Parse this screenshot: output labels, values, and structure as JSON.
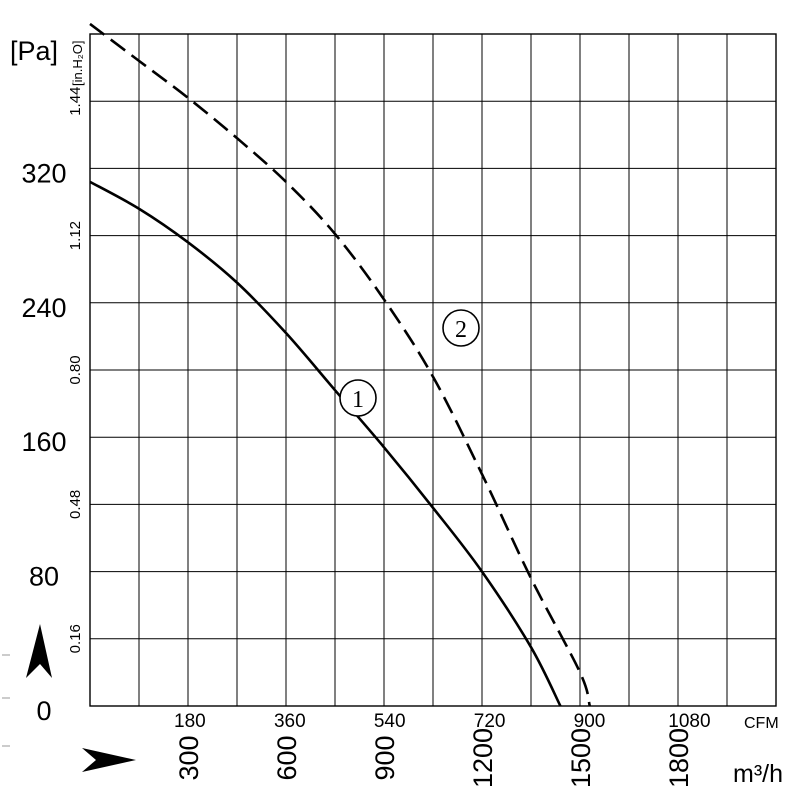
{
  "chart_data": {
    "type": "line",
    "y_primary": {
      "unit": "[Pa]",
      "ticks": [
        0,
        80,
        160,
        240,
        320
      ],
      "range": [
        0,
        400
      ]
    },
    "y_secondary": {
      "unit": "[in.H₂O]",
      "ticks": [
        "0.16",
        "0.48",
        "0.80",
        "1.12",
        "1.44"
      ],
      "values": [
        0.16,
        0.48,
        0.8,
        1.12,
        1.44
      ],
      "range": [
        0,
        1.6
      ]
    },
    "x_primary": {
      "unit": "m³/h",
      "ticks": [
        "300",
        "600",
        "900",
        "1200",
        "1500",
        "1800"
      ],
      "values": [
        300,
        600,
        900,
        1200,
        1500,
        1800
      ],
      "range": [
        0,
        2100
      ]
    },
    "x_secondary": {
      "unit": "CFM",
      "ticks": [
        "180",
        "360",
        "540",
        "720",
        "900",
        "1080"
      ],
      "values": [
        180,
        360,
        540,
        720,
        900,
        1080
      ]
    },
    "grid": true,
    "series": [
      {
        "label": "1",
        "style": "solid",
        "points": [
          [
            0,
            312
          ],
          [
            150,
            296
          ],
          [
            300,
            276
          ],
          [
            450,
            252
          ],
          [
            600,
            222
          ],
          [
            750,
            188
          ],
          [
            900,
            154
          ],
          [
            1050,
            118
          ],
          [
            1200,
            80
          ],
          [
            1350,
            35
          ],
          [
            1440,
            0
          ]
        ]
      },
      {
        "label": "2",
        "style": "dashed",
        "points": [
          [
            0,
            406
          ],
          [
            150,
            384
          ],
          [
            300,
            362
          ],
          [
            450,
            338
          ],
          [
            600,
            312
          ],
          [
            750,
            281
          ],
          [
            900,
            242
          ],
          [
            1050,
            196
          ],
          [
            1200,
            138
          ],
          [
            1350,
            76
          ],
          [
            1500,
            20
          ],
          [
            1530,
            0
          ]
        ]
      }
    ],
    "annotations": [
      {
        "text": "1",
        "near_series": 0
      },
      {
        "text": "2",
        "near_series": 1
      }
    ]
  },
  "glyphs": {
    "circled_1": "①",
    "circled_2": "②"
  }
}
